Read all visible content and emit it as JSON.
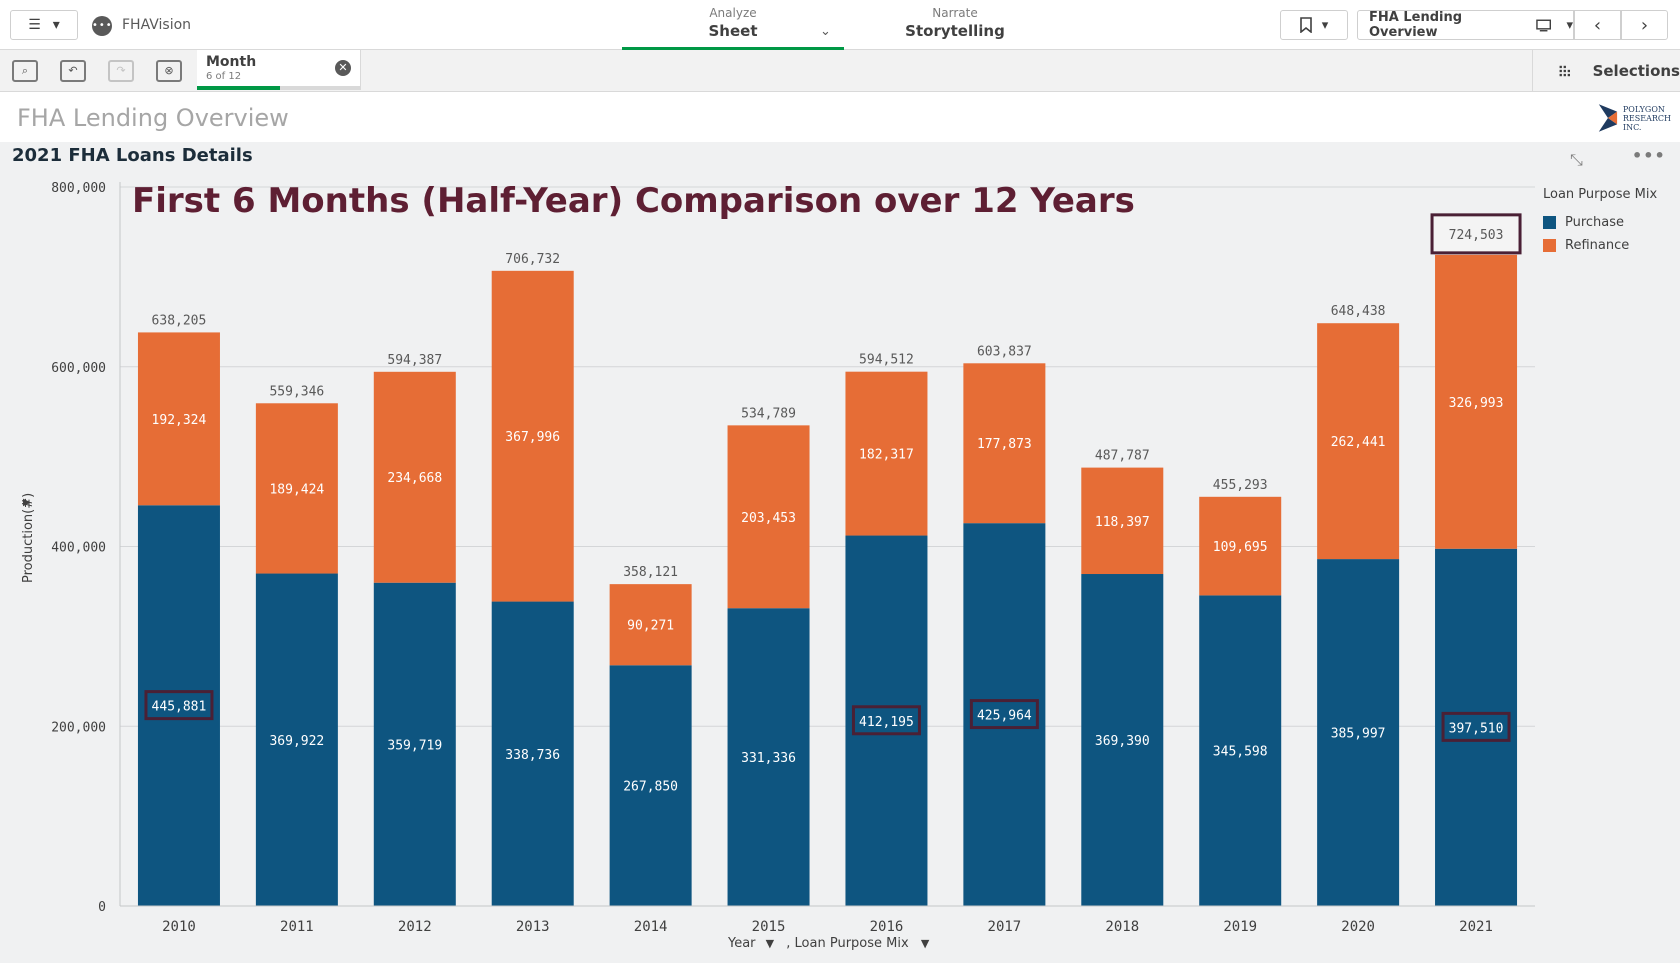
{
  "app": {
    "name": "FHAVision",
    "icon": "app-icon"
  },
  "modes": [
    {
      "small": "Analyze",
      "big": "Sheet",
      "active": true
    },
    {
      "small": "Narrate",
      "big": "Storytelling",
      "active": false
    }
  ],
  "sheet_selector": {
    "label": "FHA Lending Overview"
  },
  "selection_bar": {
    "chip": {
      "field": "Month",
      "count": "6 of 12"
    },
    "selections_label": "Selections"
  },
  "sheet": {
    "title": "FHA Lending Overview"
  },
  "logo": {
    "line1": "Polygon",
    "line2": "Research",
    "line3": "Inc."
  },
  "chart_panel": {
    "title": "2021 FHA Loans Details"
  },
  "chart_data": {
    "type": "bar",
    "stacked": true,
    "title": "First 6 Months (Half-Year) Comparison over 12 Years",
    "xlabel": "Year",
    "xlabel_suffix": ", Loan Purpose Mix",
    "ylabel": "Production(#)",
    "ylim": [
      0,
      800000
    ],
    "yticks": [
      "0",
      "200,000",
      "400,000",
      "600,000",
      "800,000"
    ],
    "ytick_values": [
      0,
      200000,
      400000,
      600000,
      800000
    ],
    "grid": true,
    "legend_title": "Loan Purpose Mix",
    "legend_position": "right",
    "categories": [
      "2010",
      "2011",
      "2012",
      "2013",
      "2014",
      "2015",
      "2016",
      "2017",
      "2018",
      "2019",
      "2020",
      "2021"
    ],
    "series": [
      {
        "name": "Purchase",
        "color": "#0e5580",
        "values": [
          445881,
          369922,
          359719,
          338736,
          267850,
          331336,
          412195,
          425964,
          369390,
          345598,
          385997,
          397510
        ],
        "labels": [
          "445,881",
          "369,922",
          "359,719",
          "338,736",
          "267,850",
          "331,336",
          "412,195",
          "425,964",
          "369,390",
          "345,598",
          "385,997",
          "397,510"
        ]
      },
      {
        "name": "Refinance",
        "color": "#e66d36",
        "values": [
          192324,
          189424,
          234668,
          367996,
          90271,
          203453,
          182317,
          177873,
          118397,
          109695,
          262441,
          326993
        ],
        "labels": [
          "192,324",
          "189,424",
          "234,668",
          "367,996",
          "90,271",
          "203,453",
          "182,317",
          "177,873",
          "118,397",
          "109,695",
          "262,441",
          "326,993"
        ]
      }
    ],
    "totals": [
      638205,
      559346,
      594387,
      706732,
      358121,
      534789,
      594512,
      603837,
      487787,
      455293,
      648438,
      724503
    ],
    "total_labels": [
      "638,205",
      "559,346",
      "594,387",
      "706,732",
      "358,121",
      "534,789",
      "594,512",
      "603,837",
      "487,787",
      "455,293",
      "648,438",
      "724,503"
    ],
    "highlighted_purchase": [
      "2010",
      "2016",
      "2017",
      "2021"
    ],
    "highlighted_total": [
      "2021"
    ],
    "highlight_color": "#4a2035"
  }
}
